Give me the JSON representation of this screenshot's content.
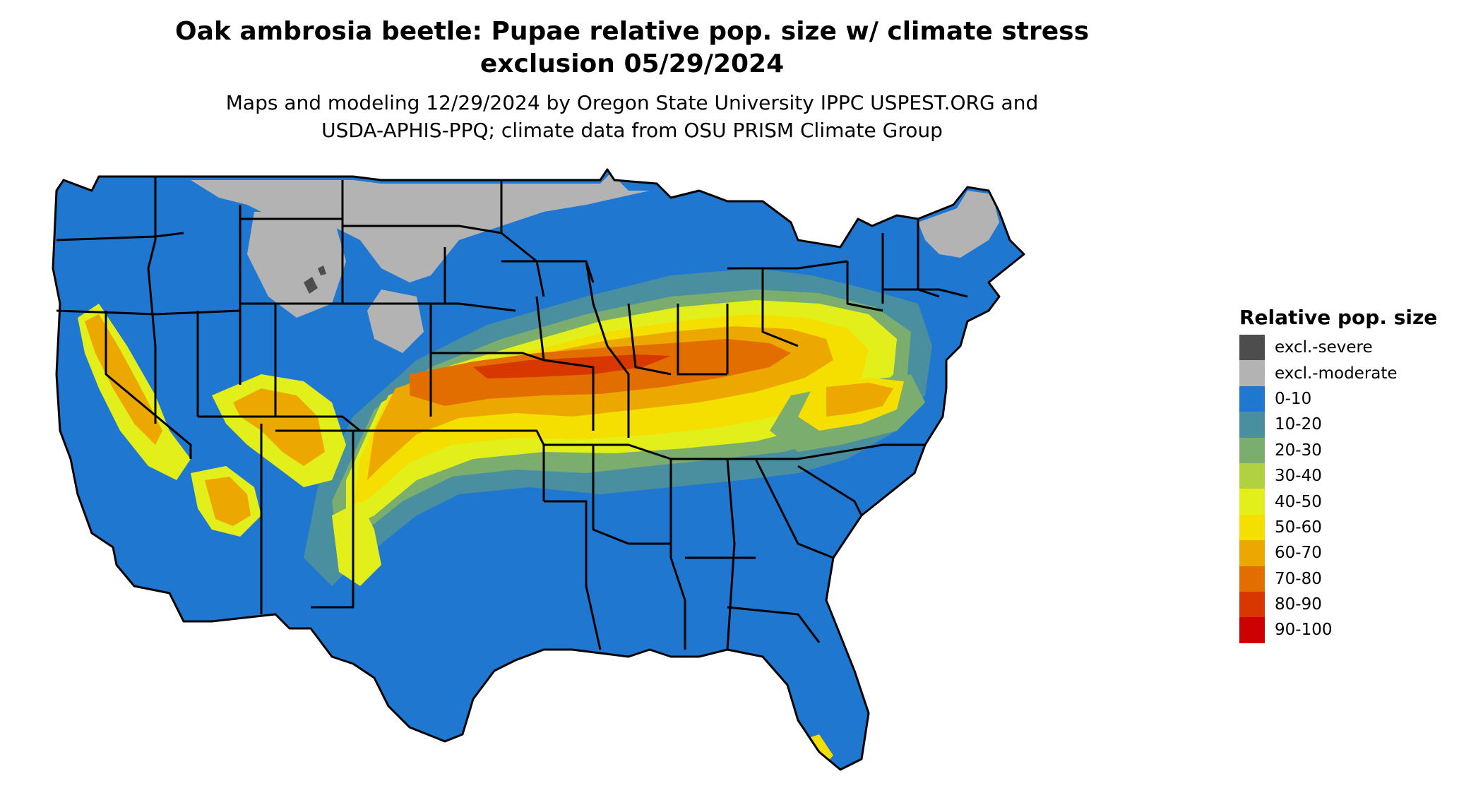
{
  "title": {
    "line1": "Oak ambrosia beetle: Pupae relative pop. size w/ climate stress",
    "line2": "exclusion 05/29/2024"
  },
  "subtitle": {
    "line1": "Maps and modeling 12/29/2024 by Oregon State University IPPC USPEST.ORG and",
    "line2": "USDA-APHIS-PPQ; climate data from OSU PRISM Climate Group"
  },
  "legend": {
    "title": "Relative pop. size",
    "items": [
      {
        "label": "excl.-severe",
        "color": "#4d4d4d"
      },
      {
        "label": "excl.-moderate",
        "color": "#b3b3b3"
      },
      {
        "label": "0-10",
        "color": "#1f77d0"
      },
      {
        "label": "10-20",
        "color": "#4a8fa0"
      },
      {
        "label": "20-30",
        "color": "#7aad6e"
      },
      {
        "label": "30-40",
        "color": "#b2d141"
      },
      {
        "label": "40-50",
        "color": "#e2ef1b"
      },
      {
        "label": "50-60",
        "color": "#f5df00"
      },
      {
        "label": "60-70",
        "color": "#eda800"
      },
      {
        "label": "70-80",
        "color": "#e36e00"
      },
      {
        "label": "80-90",
        "color": "#d93700"
      },
      {
        "label": "90-100",
        "color": "#cc0000"
      }
    ]
  },
  "colors": {
    "excl_severe": "#4d4d4d",
    "excl_moderate": "#b3b3b3",
    "c0_10": "#1f77d0",
    "c10_20": "#4a8fa0",
    "c20_30": "#7aad6e",
    "c30_40": "#b2d141",
    "c40_50": "#e2ef1b",
    "c50_60": "#f5df00",
    "c60_70": "#eda800",
    "c70_80": "#e36e00",
    "c80_90": "#d93700",
    "c90_100": "#cc0000",
    "border": "#000000"
  }
}
